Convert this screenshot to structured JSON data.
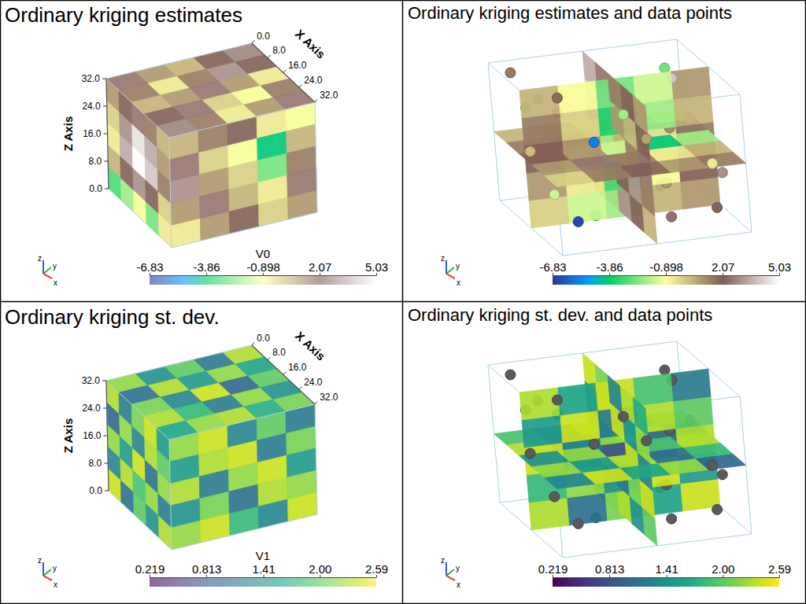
{
  "chart_data": [
    {
      "type": "volume",
      "title": "Ordinary kriging estimates",
      "xlabel": "X Axis",
      "zlabel": "Z Axis",
      "xlim": [
        0,
        32
      ],
      "zlim": [
        0,
        32
      ],
      "xticks": [
        {
          "value": 0,
          "label": "0.0"
        },
        {
          "value": 8,
          "label": "8.0"
        },
        {
          "value": 16,
          "label": "16.0"
        },
        {
          "value": 24,
          "label": "24.0"
        },
        {
          "value": 32,
          "label": "32.0"
        }
      ],
      "zticks": [
        {
          "value": 0,
          "label": "0.0"
        },
        {
          "value": 8,
          "label": "8.0"
        },
        {
          "value": 16,
          "label": "16.0"
        },
        {
          "value": 24,
          "label": "24.0"
        },
        {
          "value": 32,
          "label": "32.0"
        }
      ],
      "faces": {
        "left": [
          [
            1.0,
            2.0,
            2.5,
            1.5,
            0.5
          ],
          [
            0.0,
            3.0,
            4.5,
            3.5,
            1.0
          ],
          [
            -0.5,
            3.5,
            5.0,
            4.0,
            1.5
          ],
          [
            0.5,
            2.0,
            3.0,
            2.0,
            0.0
          ],
          [
            -3.0,
            -2.0,
            -1.0,
            -2.5,
            -0.5
          ]
        ],
        "front": [
          [
            0.5,
            1.5,
            2.0,
            -0.5,
            -1.0
          ],
          [
            2.5,
            0.0,
            -1.0,
            -4.0,
            0.5
          ],
          [
            3.0,
            1.0,
            0.0,
            -2.5,
            1.5
          ],
          [
            1.0,
            2.5,
            0.5,
            -0.5,
            2.5
          ],
          [
            -0.5,
            1.0,
            2.0,
            0.0,
            1.0
          ]
        ],
        "top": [
          [
            2.5,
            1.0,
            0.5,
            2.0,
            2.8
          ],
          [
            1.5,
            -0.5,
            1.5,
            3.0,
            2.0
          ],
          [
            0.5,
            1.0,
            2.5,
            1.0,
            -0.5
          ],
          [
            2.0,
            2.5,
            0.0,
            -1.0,
            1.5
          ],
          [
            2.8,
            1.5,
            -0.5,
            1.0,
            2.5
          ]
        ]
      },
      "colorbar": {
        "label": "V0",
        "range": [
          -6.83,
          5.03
        ],
        "ticks": [
          -6.83,
          -3.86,
          -0.898,
          2.07,
          5.03
        ],
        "color": "terrain"
      },
      "axes_widget": [
        "x",
        "y",
        "z"
      ]
    },
    {
      "type": "slices",
      "title": "Ordinary kriging estimates and data points",
      "xlim": [
        0,
        32
      ],
      "ylim": [
        0,
        32
      ],
      "zlim": [
        0,
        32
      ],
      "slices": [
        {
          "normal": "x",
          "at": 16,
          "cells": [
            [
              0.5,
              -1.0,
              -2.5,
              -1.5,
              1.0
            ],
            [
              1.5,
              0.0,
              -3.5,
              -2.0,
              0.5
            ],
            [
              2.0,
              1.0,
              -2.0,
              -0.5,
              1.5
            ],
            [
              1.0,
              -0.5,
              -3.0,
              -1.0,
              2.0
            ],
            [
              0.0,
              -1.5,
              -2.0,
              0.5,
              1.0
            ]
          ]
        },
        {
          "normal": "y",
          "at": 16,
          "cells": [
            [
              3.5,
              2.5,
              1.5,
              2.0,
              1.0
            ],
            [
              4.0,
              3.0,
              1.0,
              0.5,
              2.0
            ],
            [
              3.0,
              2.0,
              0.5,
              1.5,
              2.5
            ],
            [
              2.0,
              1.0,
              2.0,
              3.0,
              1.5
            ],
            [
              1.0,
              2.5,
              3.0,
              2.0,
              0.5
            ]
          ]
        },
        {
          "normal": "z",
          "at": 16,
          "cells": [
            [
              0.5,
              1.0,
              -1.0,
              -3.0,
              -1.5
            ],
            [
              1.5,
              2.0,
              0.0,
              -5.5,
              -6.5
            ],
            [
              2.0,
              1.0,
              -1.5,
              -4.0,
              -2.0
            ],
            [
              1.0,
              2.5,
              1.5,
              -0.5,
              0.5
            ],
            [
              0.0,
              1.5,
              2.0,
              1.0,
              1.5
            ]
          ]
        }
      ],
      "points": {
        "x": [
          2,
          5,
          8,
          3,
          1,
          6,
          10,
          4,
          7,
          12,
          14,
          20,
          25,
          28,
          30,
          22,
          26,
          18,
          29,
          31,
          24,
          27,
          15,
          9,
          11,
          16,
          21,
          19,
          13,
          17
        ],
        "y": [
          3,
          28,
          15,
          10,
          22,
          6,
          30,
          18,
          25,
          2,
          12,
          5,
          9,
          20,
          27,
          31,
          14,
          24,
          4,
          16,
          29,
          1,
          26,
          8,
          20,
          11,
          17,
          0,
          6,
          23
        ],
        "z": [
          30,
          28,
          5,
          20,
          12,
          25,
          18,
          8,
          2,
          26,
          14,
          31,
          22,
          4,
          16,
          10,
          28,
          20,
          6,
          24,
          3,
          12,
          30,
          9,
          15,
          1,
          26,
          19,
          11,
          7
        ],
        "values": [
          1.5,
          -2.5,
          0.5,
          2.8,
          -4.0,
          1.0,
          3.5,
          -1.0,
          2.0,
          -3.0,
          0.0,
          1.8,
          -5.5,
          2.5,
          -0.5,
          3.0,
          -2.0,
          1.2,
          -6.5,
          0.8,
          2.2,
          -1.5,
          4.0,
          -0.8,
          1.5,
          -3.5,
          2.6,
          0.3,
          -2.2,
          1.0
        ]
      },
      "colorbar": {
        "range": [
          -6.83,
          5.03
        ],
        "ticks": [
          -6.83,
          -3.86,
          -0.898,
          2.07,
          5.03
        ],
        "color": "terrain"
      },
      "axes_widget": [
        "x",
        "y",
        "z"
      ]
    },
    {
      "type": "volume",
      "title": "Ordinary kriging st. dev.",
      "xlabel": "X Axis",
      "zlabel": "Z Axis",
      "xlim": [
        0,
        32
      ],
      "zlim": [
        0,
        32
      ],
      "xticks": [
        {
          "value": 0,
          "label": "0.0"
        },
        {
          "value": 8,
          "label": "8.0"
        },
        {
          "value": 16,
          "label": "16.0"
        },
        {
          "value": 24,
          "label": "24.0"
        },
        {
          "value": 32,
          "label": "32.0"
        }
      ],
      "zticks": [
        {
          "value": 0,
          "label": "0.0"
        },
        {
          "value": 8,
          "label": "8.0"
        },
        {
          "value": 16,
          "label": "16.0"
        },
        {
          "value": 24,
          "label": "24.0"
        },
        {
          "value": 32,
          "label": "32.0"
        }
      ],
      "faces": {
        "left": [
          [
            2.3,
            1.2,
            2.1,
            2.4,
            1.5
          ],
          [
            1.0,
            2.2,
            1.3,
            2.3,
            2.0
          ],
          [
            2.2,
            1.5,
            2.4,
            1.1,
            2.2
          ],
          [
            1.3,
            2.3,
            1.9,
            2.2,
            1.2
          ],
          [
            2.4,
            1.1,
            2.0,
            1.4,
            2.3
          ]
        ],
        "front": [
          [
            2.2,
            2.4,
            1.3,
            2.0,
            1.2
          ],
          [
            1.5,
            2.3,
            2.4,
            1.2,
            2.1
          ],
          [
            2.3,
            1.2,
            2.2,
            2.4,
            1.5
          ],
          [
            1.4,
            2.1,
            1.1,
            2.3,
            2.2
          ],
          [
            2.2,
            2.4,
            1.8,
            1.3,
            2.4
          ]
        ],
        "top": [
          [
            2.2,
            1.4,
            2.0,
            1.2,
            2.3
          ],
          [
            1.1,
            2.3,
            1.5,
            2.2,
            1.6
          ],
          [
            2.1,
            1.3,
            2.4,
            1.0,
            2.0
          ],
          [
            2.3,
            1.8,
            1.2,
            2.2,
            1.4
          ],
          [
            1.6,
            2.2,
            2.3,
            1.7,
            2.1
          ]
        ]
      },
      "colorbar": {
        "label": "V1",
        "range": [
          0.219,
          2.59
        ],
        "ticks": [
          0.219,
          0.813,
          1.41,
          {
            "value": 2,
            "label": "2.00"
          },
          2.59
        ],
        "color": "viridis"
      },
      "axes_widget": [
        "x",
        "y",
        "z"
      ]
    },
    {
      "type": "slices",
      "title": "Ordinary kriging st. dev. and data points",
      "xlim": [
        0,
        32
      ],
      "ylim": [
        0,
        32
      ],
      "zlim": [
        0,
        32
      ],
      "slices": [
        {
          "normal": "x",
          "at": 16,
          "cells": [
            [
              2.3,
              1.6,
              2.4,
              1.9,
              1.2
            ],
            [
              1.5,
              2.4,
              1.2,
              2.3,
              2.0
            ],
            [
              2.4,
              1.3,
              2.2,
              1.0,
              2.3
            ],
            [
              1.8,
              2.2,
              1.4,
              2.4,
              1.5
            ],
            [
              2.3,
              1.1,
              2.1,
              1.6,
              2.4
            ]
          ]
        },
        {
          "normal": "y",
          "at": 16,
          "cells": [
            [
              2.4,
              2.1,
              1.3,
              2.3,
              1.7
            ],
            [
              1.2,
              2.3,
              2.4,
              1.5,
              2.2
            ],
            [
              2.1,
              1.4,
              2.2,
              2.4,
              1.3
            ],
            [
              2.3,
              1.9,
              1.2,
              2.1,
              2.4
            ],
            [
              1.6,
              2.4,
              2.3,
              1.4,
              2.0
            ]
          ]
        },
        {
          "normal": "z",
          "at": 16,
          "cells": [
            [
              1.9,
              1.2,
              2.3,
              1.5,
              2.2
            ],
            [
              2.3,
              0.9,
              1.7,
              2.4,
              1.3
            ],
            [
              1.4,
              2.2,
              0.8,
              1.9,
              2.3
            ],
            [
              2.2,
              1.5,
              2.3,
              1.1,
              1.8
            ],
            [
              1.3,
              2.4,
              1.6,
              2.2,
              1.0
            ]
          ]
        }
      ],
      "points": {
        "x": [
          2,
          5,
          8,
          3,
          1,
          6,
          10,
          4,
          7,
          12,
          14,
          20,
          25,
          28,
          30,
          22,
          26,
          18,
          29,
          31,
          24,
          27,
          15,
          9,
          11,
          16,
          21,
          19,
          13,
          17
        ],
        "y": [
          3,
          28,
          15,
          10,
          22,
          6,
          30,
          18,
          25,
          2,
          12,
          5,
          9,
          20,
          27,
          31,
          14,
          24,
          4,
          16,
          29,
          1,
          26,
          8,
          20,
          11,
          17,
          0,
          6,
          23
        ],
        "z": [
          30,
          28,
          5,
          20,
          12,
          25,
          18,
          8,
          2,
          26,
          14,
          31,
          22,
          4,
          16,
          10,
          28,
          20,
          6,
          24,
          3,
          12,
          30,
          9,
          15,
          1,
          26,
          19,
          11,
          7
        ],
        "color": "#5a5a5a"
      },
      "colorbar": {
        "range": [
          0.219,
          2.59
        ],
        "ticks": [
          0.219,
          0.813,
          1.41,
          {
            "value": 2,
            "label": "2.00"
          },
          2.59
        ],
        "color": "viridis"
      },
      "axes_widget": [
        "x",
        "y",
        "z"
      ]
    }
  ]
}
